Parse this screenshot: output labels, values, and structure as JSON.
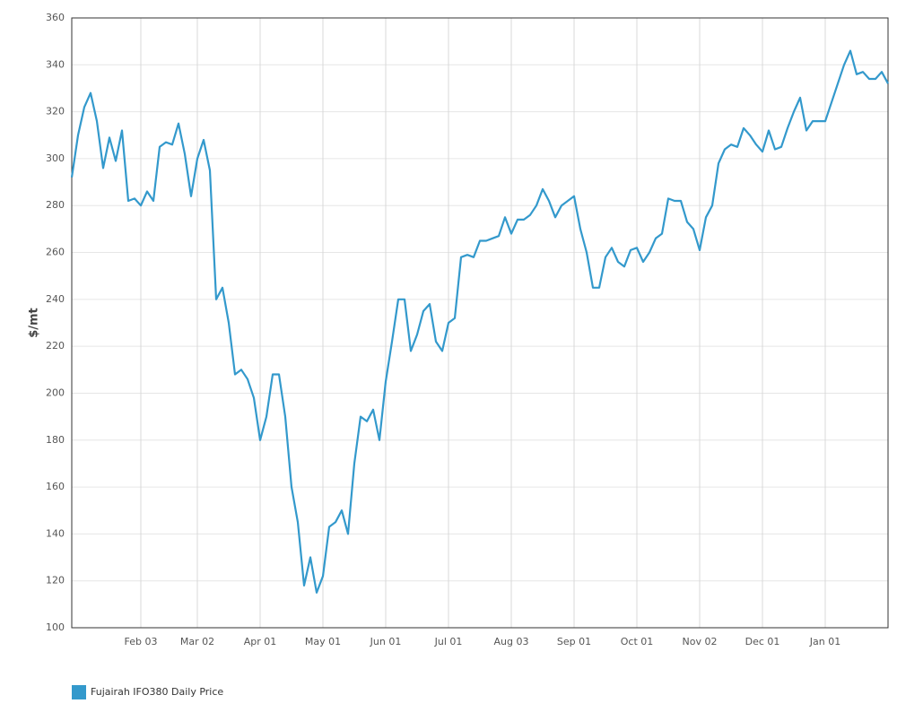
{
  "chart_data": {
    "type": "line",
    "y_label": "$/mt",
    "categories": [
      null,
      null,
      null,
      null,
      null,
      null,
      null,
      null,
      null,
      null,
      null,
      "Feb 03",
      null,
      null,
      null,
      null,
      null,
      null,
      null,
      null,
      "Mar 02",
      null,
      null,
      null,
      null,
      null,
      null,
      null,
      null,
      null,
      "Apr 01",
      null,
      null,
      null,
      null,
      null,
      null,
      null,
      null,
      null,
      "May 01",
      null,
      null,
      null,
      null,
      null,
      null,
      null,
      null,
      null,
      "Jun 01",
      null,
      null,
      null,
      null,
      null,
      null,
      null,
      null,
      null,
      "Jul 01",
      null,
      null,
      null,
      null,
      null,
      null,
      null,
      null,
      null,
      "Aug 03",
      null,
      null,
      null,
      null,
      null,
      null,
      null,
      null,
      null,
      "Sep 01",
      null,
      null,
      null,
      null,
      null,
      null,
      null,
      null,
      null,
      "Oct 01",
      null,
      null,
      null,
      null,
      null,
      null,
      null,
      null,
      null,
      "Nov 02",
      null,
      null,
      null,
      null,
      null,
      null,
      null,
      null,
      null,
      "Dec 01",
      null,
      null,
      null,
      null,
      null,
      null,
      null,
      null,
      null,
      "Jan 01",
      null,
      null,
      null,
      null,
      null,
      null,
      null,
      null,
      null,
      null
    ],
    "series": [
      {
        "name": "Fujairah IFO380 Daily Price",
        "color": "#3399cc",
        "values": [
          292,
          310,
          322,
          328,
          316,
          296,
          309,
          299,
          312,
          282,
          283,
          280,
          286,
          282,
          305,
          307,
          306,
          315,
          302,
          284,
          300,
          308,
          295,
          240,
          245,
          230,
          208,
          210,
          206,
          198,
          180,
          190,
          208,
          208,
          190,
          160,
          145,
          118,
          130,
          115,
          122,
          143,
          145,
          150,
          140,
          170,
          190,
          188,
          193,
          180,
          205,
          222,
          240,
          240,
          218,
          225,
          235,
          238,
          222,
          218,
          230,
          232,
          258,
          259,
          258,
          265,
          265,
          266,
          267,
          275,
          268,
          274,
          274,
          276,
          280,
          287,
          282,
          275,
          280,
          282,
          284,
          270,
          260,
          245,
          245,
          258,
          262,
          256,
          254,
          261,
          262,
          256,
          260,
          266,
          268,
          283,
          282,
          282,
          273,
          270,
          261,
          275,
          280,
          298,
          304,
          306,
          305,
          313,
          310,
          306,
          303,
          312,
          304,
          305,
          313,
          320,
          326,
          312,
          316,
          316,
          316,
          324,
          332,
          340,
          346,
          336,
          337,
          334,
          334,
          337,
          332
        ]
      }
    ],
    "ylim": [
      100,
      360
    ],
    "yticks": [
      100,
      120,
      140,
      160,
      180,
      200,
      220,
      240,
      260,
      280,
      300,
      320,
      340,
      360
    ],
    "grid": true,
    "legend": "bottom-left"
  }
}
